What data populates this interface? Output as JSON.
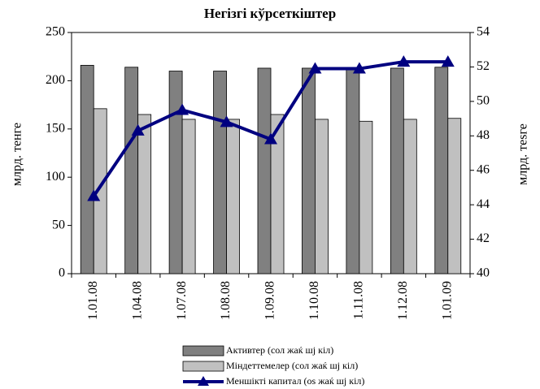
{
  "chart_data": {
    "type": "bar",
    "title": "Негізгі кўрсеткіштер",
    "y_label": "млрд. тенге",
    "y2_label": "млрд. теѕге",
    "categories": [
      "1.01.08",
      "1.04.08",
      "1.07.08",
      "1.08.08",
      "1.09.08",
      "1.10.08",
      "1.11.08",
      "1.12.08",
      "1.01.09"
    ],
    "series": [
      {
        "name": "Активтер (сол жаќ шј кіл)",
        "color": "#808080",
        "values": [
          216,
          214,
          210,
          210,
          213,
          213,
          213,
          213,
          214
        ]
      },
      {
        "name": "Міндеттемелер (сол жаќ шј кіл)",
        "color": "#c0c0c0",
        "values": [
          171,
          165,
          160,
          160,
          165,
          160,
          158,
          160,
          161
        ]
      },
      {
        "name": "Меншікті капитал (оѕ жаќ шј кіл)",
        "color": "#000080",
        "type": "line",
        "axis": "y2",
        "values": [
          44.5,
          48.3,
          49.5,
          48.8,
          47.8,
          51.9,
          51.9,
          52.3,
          52.3
        ]
      }
    ],
    "ylim": [
      0,
      250
    ],
    "yticks": [
      0,
      50,
      100,
      150,
      200,
      250
    ],
    "y2lim": [
      40,
      54
    ],
    "y2ticks": [
      40,
      42,
      44,
      46,
      48,
      50,
      52,
      54
    ],
    "legend": "bottom"
  }
}
